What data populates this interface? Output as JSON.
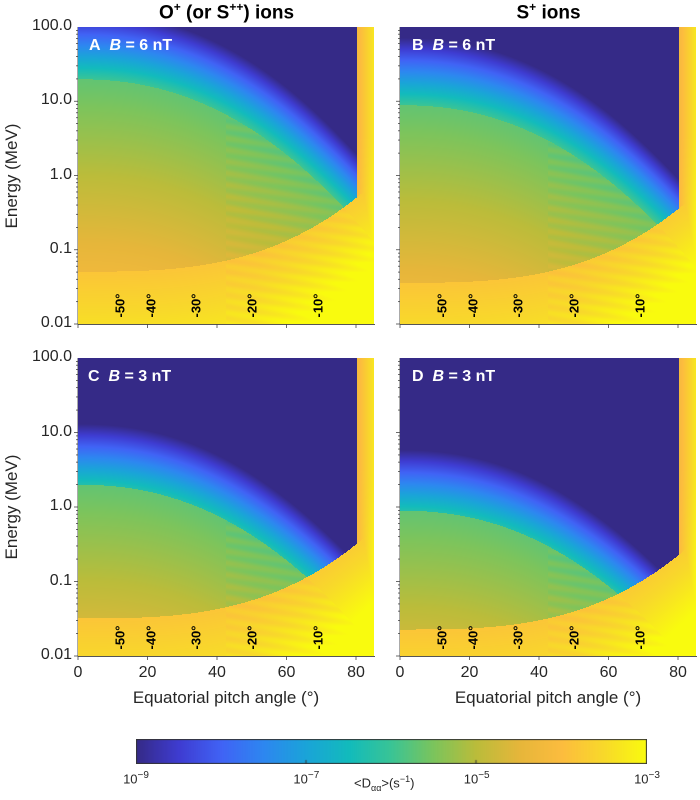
{
  "chart_data": [
    {
      "type": "heatmap",
      "panel": "A",
      "column_title": "O+ (or S++) ions",
      "column_title_parts": {
        "base1": "O",
        "sup1": "+",
        "mid": " (or S",
        "sup2": "++",
        "end": ") ions"
      },
      "label_letter": "A",
      "label_field": "B",
      "label_value": " = 6 nT",
      "ion_severity": 0,
      "field_nT": 6,
      "xlabel": "",
      "ylabel": "Energy (MeV)",
      "xlim": [
        0,
        85
      ],
      "ylim": [
        0.01,
        100.0
      ],
      "yscale": "log",
      "y_ticks": [
        "100.0",
        "10.0",
        "1.0",
        "0.1",
        "0.01"
      ],
      "x_ticks": [],
      "colormap": "parula",
      "annotations": [
        "-50°",
        "-40°",
        "-30°",
        "-20°",
        "-10°"
      ],
      "annotation_x": [
        12,
        21,
        34,
        50,
        69
      ]
    },
    {
      "type": "heatmap",
      "panel": "B",
      "column_title": "S+ ions",
      "column_title_parts": {
        "base1": "S",
        "sup1": "+",
        "end": " ions"
      },
      "label_letter": "B",
      "label_field": "B",
      "label_value": " = 6 nT",
      "ion_severity": 1,
      "field_nT": 6,
      "xlabel": "",
      "ylabel": "",
      "xlim": [
        0,
        85
      ],
      "ylim": [
        0.01,
        100.0
      ],
      "yscale": "log",
      "colormap": "parula",
      "annotations": [
        "-50°",
        "-40°",
        "-30°",
        "-20°",
        "-10°"
      ],
      "annotation_x": [
        12,
        21,
        34,
        50,
        69
      ]
    },
    {
      "type": "heatmap",
      "panel": "C",
      "label_letter": "C",
      "label_field": "B",
      "label_value": " = 3 nT",
      "ion_severity": 0,
      "field_nT": 3,
      "xlabel": "Equatorial pitch angle (°)",
      "ylabel": "Energy (MeV)",
      "xlim": [
        0,
        85
      ],
      "ylim": [
        0.01,
        100.0
      ],
      "yscale": "log",
      "y_ticks": [
        "100.0",
        "10.0",
        "1.0",
        "0.1",
        "0.01"
      ],
      "x_ticks": [
        "0",
        "20",
        "40",
        "60",
        "80"
      ],
      "colormap": "parula",
      "annotations": [
        "-50°",
        "-40°",
        "-30°",
        "-20°",
        "-10°"
      ],
      "annotation_x": [
        12,
        21,
        34,
        50,
        69
      ]
    },
    {
      "type": "heatmap",
      "panel": "D",
      "label_letter": "D",
      "label_field": "B",
      "label_value": " = 3 nT",
      "ion_severity": 1,
      "field_nT": 3,
      "xlabel": "Equatorial pitch angle (°)",
      "ylabel": "",
      "xlim": [
        0,
        85
      ],
      "ylim": [
        0.01,
        100.0
      ],
      "yscale": "log",
      "x_ticks": [
        "0",
        "20",
        "40",
        "60",
        "80"
      ],
      "colormap": "parula",
      "annotations": [
        "-50°",
        "-40°",
        "-30°",
        "-20°",
        "-10°"
      ],
      "annotation_x": [
        12,
        21,
        34,
        50,
        69
      ]
    }
  ],
  "colorbar": {
    "title_parts": {
      "pre": "<D",
      "sub": "αα",
      "post": ">(s",
      "sup": "−1",
      "end": ")"
    },
    "scale": "log",
    "range": [
      1e-09,
      0.001
    ],
    "ticks": [
      {
        "value": 1e-09,
        "base": "10",
        "exp": "−9"
      },
      {
        "value": 1e-07,
        "base": "10",
        "exp": "−7"
      },
      {
        "value": 1e-05,
        "base": "10",
        "exp": "−5"
      },
      {
        "value": 0.001,
        "base": "10",
        "exp": "−3"
      }
    ],
    "colors": [
      "#352a87",
      "#3e3cd1",
      "#4063f5",
      "#2d87f0",
      "#1aa4d8",
      "#12bbbc",
      "#3ac495",
      "#7cc45c",
      "#bbbc3a",
      "#e6b63a",
      "#fcbc3e",
      "#f8d92a",
      "#f9fb0e"
    ]
  }
}
